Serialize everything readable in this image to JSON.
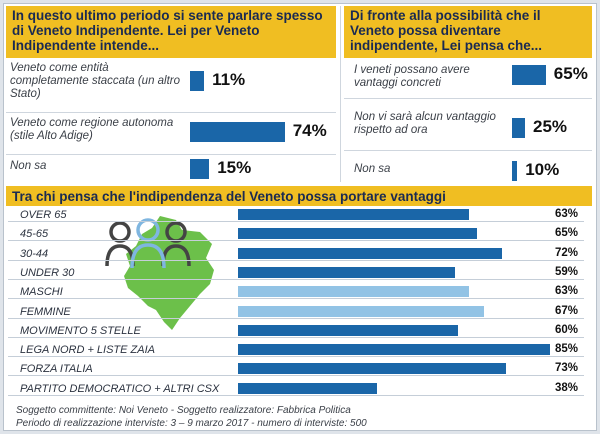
{
  "colors": {
    "accent": "#f0be22",
    "bar_dark": "#1a66a8",
    "bar_light": "#92c3e5",
    "region_green": "#6cc04a"
  },
  "icons": [
    "people-icon",
    "veneto-map-icon"
  ],
  "chart_data": [
    {
      "type": "bar",
      "orientation": "horizontal",
      "title": "In questo ultimo periodo si sente parlare spesso di Veneto Indipendente. Lei per Veneto Indipendente intende...",
      "categories": [
        "Veneto come entità completamente staccata (un altro Stato)",
        "Veneto come regione autonoma (stile Alto Adige)",
        "Non sa"
      ],
      "values": [
        11,
        74,
        15
      ],
      "labels": [
        "11%",
        "74%",
        "15%"
      ],
      "unit": "%"
    },
    {
      "type": "bar",
      "orientation": "horizontal",
      "title": "Di fronte alla possibilità che il Veneto possa diventare indipendente, Lei pensa che...",
      "categories": [
        "I veneti possano avere vantaggi concreti",
        "Non vi sarà alcun vantaggio rispetto ad ora",
        "Non sa"
      ],
      "values": [
        65,
        25,
        10
      ],
      "labels": [
        "65%",
        "25%",
        "10%"
      ],
      "unit": "%"
    },
    {
      "type": "bar",
      "orientation": "horizontal",
      "title": "Tra chi pensa che l'indipendenza del Veneto possa portare vantaggi",
      "categories": [
        "OVER 65",
        "45-65",
        "30-44",
        "UNDER 30",
        "MASCHI",
        "FEMMINE",
        "MOVIMENTO 5 STELLE",
        "LEGA NORD + LISTE ZAIA",
        "FORZA ITALIA",
        "PARTITO DEMOCRATICO + ALTRI CSX"
      ],
      "values": [
        63,
        65,
        72,
        59,
        63,
        67,
        60,
        85,
        73,
        38
      ],
      "labels": [
        "63%",
        "65%",
        "72%",
        "59%",
        "63%",
        "67%",
        "60%",
        "85%",
        "73%",
        "38%"
      ],
      "shades": [
        "dark",
        "dark",
        "dark",
        "dark",
        "light",
        "light",
        "dark",
        "dark",
        "dark",
        "dark"
      ],
      "unit": "%"
    }
  ],
  "footer": {
    "line1": "Soggetto committente: Noi Veneto - Soggetto realizzatore: Fabbrica Politica",
    "line2": "Periodo di realizzazione interviste: 3 – 9 marzo 2017 - numero di interviste: 500"
  }
}
